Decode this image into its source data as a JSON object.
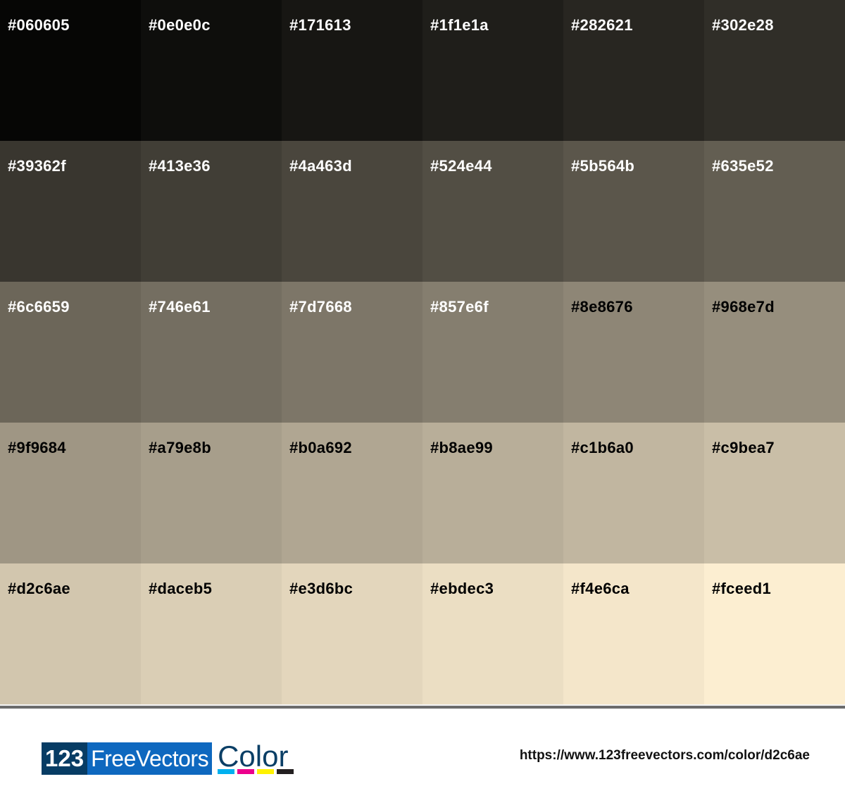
{
  "swatches": [
    {
      "hex": "#060605",
      "text": "#ffffff"
    },
    {
      "hex": "#0e0e0c",
      "text": "#ffffff"
    },
    {
      "hex": "#171613",
      "text": "#ffffff"
    },
    {
      "hex": "#1f1e1a",
      "text": "#ffffff"
    },
    {
      "hex": "#282621",
      "text": "#ffffff"
    },
    {
      "hex": "#302e28",
      "text": "#ffffff"
    },
    {
      "hex": "#39362f",
      "text": "#ffffff"
    },
    {
      "hex": "#413e36",
      "text": "#ffffff"
    },
    {
      "hex": "#4a463d",
      "text": "#ffffff"
    },
    {
      "hex": "#524e44",
      "text": "#ffffff"
    },
    {
      "hex": "#5b564b",
      "text": "#ffffff"
    },
    {
      "hex": "#635e52",
      "text": "#ffffff"
    },
    {
      "hex": "#6c6659",
      "text": "#ffffff"
    },
    {
      "hex": "#746e61",
      "text": "#ffffff"
    },
    {
      "hex": "#7d7668",
      "text": "#ffffff"
    },
    {
      "hex": "#857e6f",
      "text": "#ffffff"
    },
    {
      "hex": "#8e8676",
      "text": "#000000"
    },
    {
      "hex": "#968e7d",
      "text": "#000000"
    },
    {
      "hex": "#9f9684",
      "text": "#000000"
    },
    {
      "hex": "#a79e8b",
      "text": "#000000"
    },
    {
      "hex": "#b0a692",
      "text": "#000000"
    },
    {
      "hex": "#b8ae99",
      "text": "#000000"
    },
    {
      "hex": "#c1b6a0",
      "text": "#000000"
    },
    {
      "hex": "#c9bea7",
      "text": "#000000"
    },
    {
      "hex": "#d2c6ae",
      "text": "#000000"
    },
    {
      "hex": "#daceb5",
      "text": "#000000"
    },
    {
      "hex": "#e3d6bc",
      "text": "#000000"
    },
    {
      "hex": "#ebdec3",
      "text": "#000000"
    },
    {
      "hex": "#f4e6ca",
      "text": "#000000"
    },
    {
      "hex": "#fceed1",
      "text": "#000000"
    }
  ],
  "footer": {
    "logo": {
      "part1": "123",
      "part2": "FreeVectors",
      "part3": "Color",
      "bar_colors": [
        "#00b0ef",
        "#ec008c",
        "#fff200",
        "#231f20"
      ]
    },
    "url": "https://www.123freevectors.com/color/d2c6ae"
  }
}
